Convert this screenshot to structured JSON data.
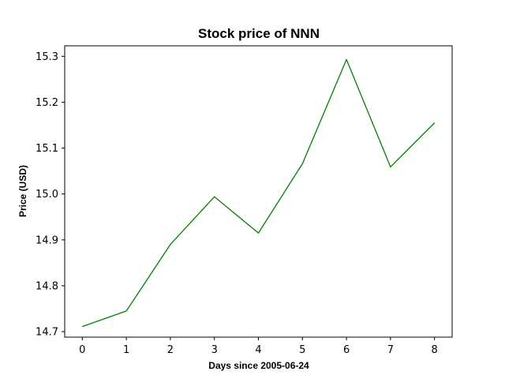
{
  "chart_data": {
    "type": "line",
    "title": "Stock price of NNN",
    "xlabel": "Days since 2005-06-24",
    "ylabel": "Price (USD)",
    "x": [
      0,
      1,
      2,
      3,
      4,
      5,
      6,
      7,
      8
    ],
    "series": [
      {
        "values": [
          14.711,
          14.745,
          14.89,
          14.994,
          14.915,
          15.066,
          15.293,
          15.059,
          15.155
        ],
        "color": "#008000"
      }
    ],
    "xlim": [
      -0.4,
      8.4
    ],
    "ylim": [
      14.688,
      15.323
    ],
    "xticks": [
      "0",
      "1",
      "2",
      "3",
      "4",
      "5",
      "6",
      "7",
      "8"
    ],
    "xtick_values": [
      0,
      1,
      2,
      3,
      4,
      5,
      6,
      7,
      8
    ],
    "yticks": [
      "14.7",
      "14.8",
      "14.9",
      "15.0",
      "15.1",
      "15.2",
      "15.3"
    ],
    "ytick_values": [
      14.7,
      14.8,
      14.9,
      15.0,
      15.1,
      15.2,
      15.3
    ],
    "grid": false,
    "legend": "none"
  }
}
